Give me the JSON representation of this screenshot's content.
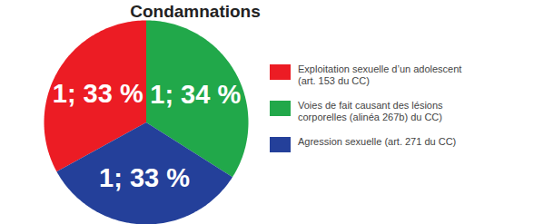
{
  "chart_data": {
    "type": "pie",
    "title": "Condamnations",
    "categories": [
      "Exploitation sexuelle d’un adolescent (art. 153 du CC)",
      "Voies de fait causant des lésions corporelles (alinéa 267b) du CC)",
      "Agression sexuelle (art. 271 du CC)"
    ],
    "values": [
      33,
      34,
      33
    ],
    "value_labels": [
      "1; 33 %",
      "1; 34 %",
      "1; 33 %"
    ],
    "colors": [
      "#ec1c24",
      "#21a84a",
      "#24409a"
    ],
    "data_labels": true,
    "legend": "right"
  }
}
